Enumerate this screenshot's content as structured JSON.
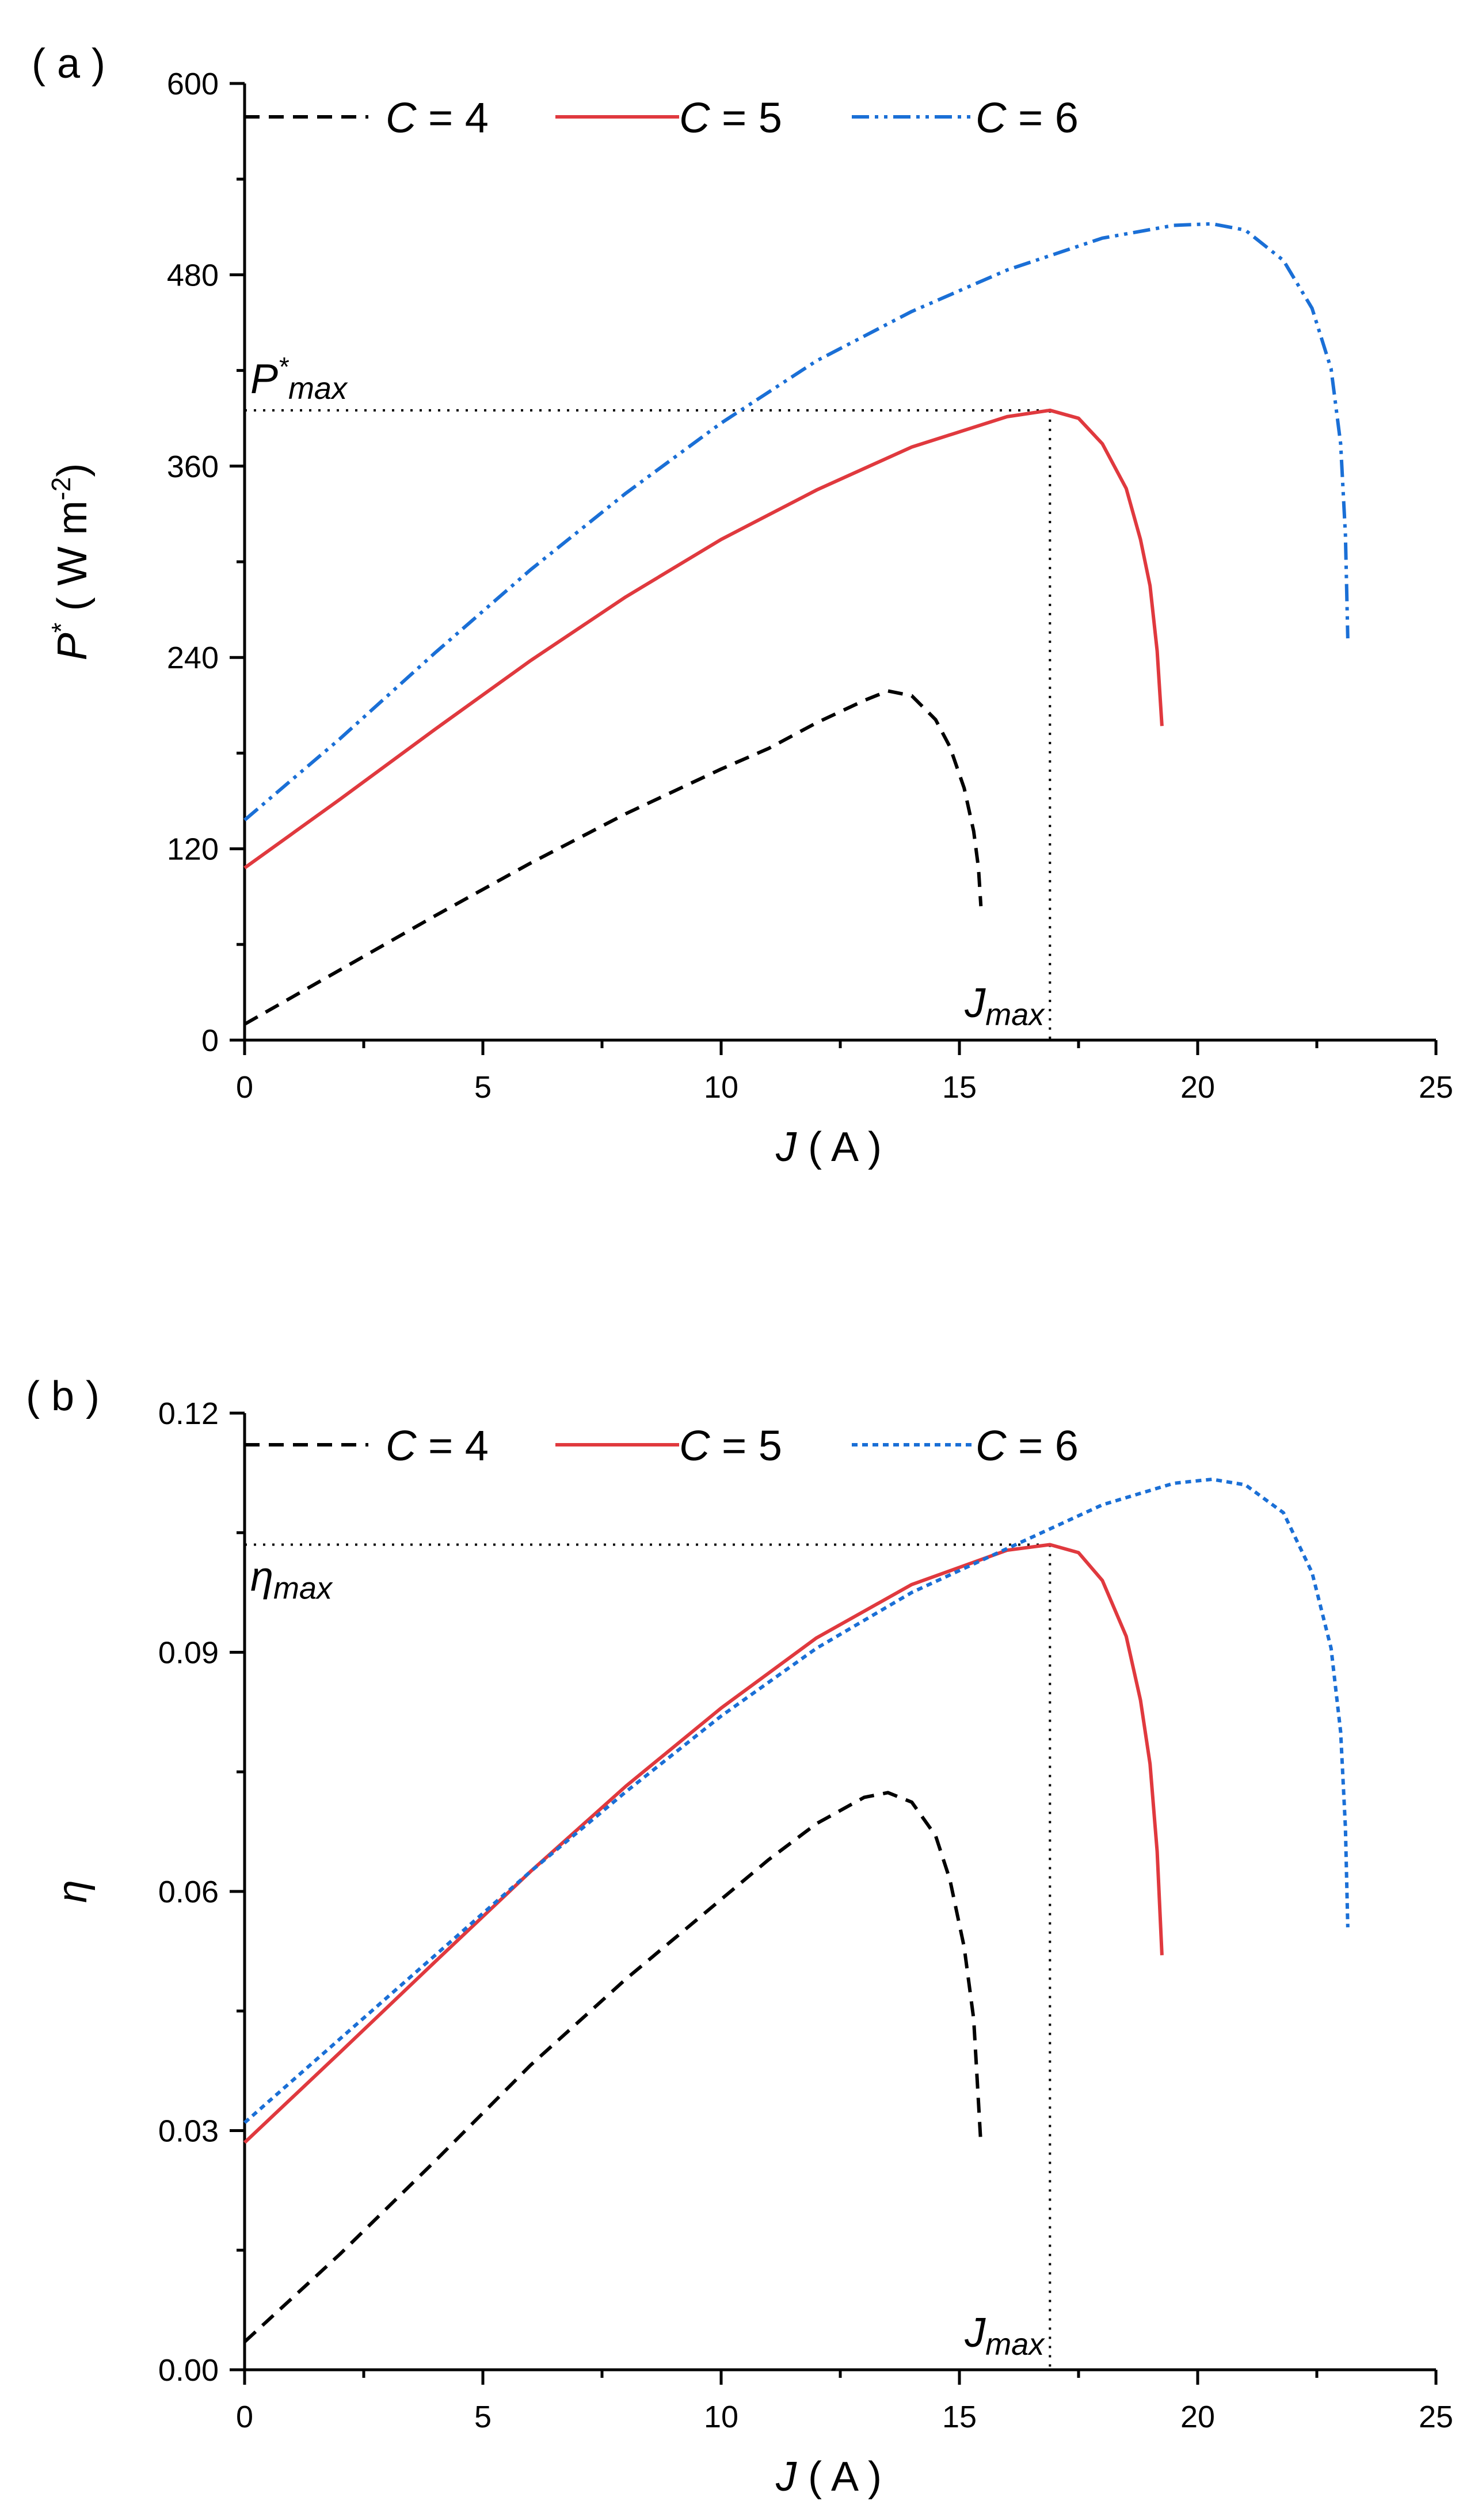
{
  "chart_data": [
    {
      "panel_label": "( a )",
      "type": "line",
      "xlabel_var": "J",
      "xlabel_unit": "( A )",
      "ylabel_var": "P",
      "ylabel_sup": "*",
      "ylabel_unit": "( W m",
      "ylabel_unit_sup": "-2",
      "ylabel_unit_close": ")",
      "xlim": [
        0,
        25
      ],
      "ylim": [
        0,
        600
      ],
      "xticks": [
        0,
        5,
        10,
        15,
        20,
        25
      ],
      "xtick_labels": [
        "0",
        "5",
        "10",
        "15",
        "20",
        "25"
      ],
      "yticks": [
        0,
        120,
        240,
        360,
        480,
        600
      ],
      "ytick_labels": [
        "0",
        "120",
        "240",
        "360",
        "480",
        "600"
      ],
      "legend": [
        {
          "var": "C",
          "text": " = 4",
          "color": "#000000",
          "dash": "dash"
        },
        {
          "var": "C",
          "text": " = 5",
          "color": "#e0393e",
          "dash": "solid"
        },
        {
          "var": "C",
          "text": " = 6",
          "color": "#1a6fd6",
          "dash": "dashdotdot"
        }
      ],
      "series": [
        {
          "name": "C = 4",
          "color": "#000000",
          "dash": "dash",
          "x": [
            0,
            2,
            4,
            6,
            8,
            10,
            11,
            12,
            13,
            13.5,
            14,
            14.5,
            14.8,
            15.1,
            15.3,
            15.4,
            15.45
          ],
          "y": [
            10,
            44,
            78,
            111,
            142,
            170,
            183,
            199,
            213,
            219,
            216,
            201,
            184,
            158,
            131,
            108,
            84
          ]
        },
        {
          "name": "C = 5",
          "color": "#e0393e",
          "dash": "solid",
          "x": [
            0,
            2,
            4,
            6,
            8,
            10,
            12,
            14,
            16,
            16.9,
            17.5,
            18.0,
            18.5,
            18.8,
            19.0,
            19.15,
            19.25
          ],
          "y": [
            108,
            151,
            195,
            238,
            278,
            314,
            345,
            372,
            391,
            395,
            390,
            374,
            346,
            314,
            285,
            244,
            197
          ]
        },
        {
          "name": "C = 6",
          "color": "#1a6fd6",
          "dash": "dashdotdot",
          "x": [
            0,
            2,
            4,
            6,
            8,
            10,
            12,
            14,
            16,
            18,
            19.5,
            20.3,
            21,
            21.8,
            22.4,
            22.8,
            23.0,
            23.1,
            23.15
          ],
          "y": [
            138,
            189,
            243,
            295,
            343,
            387,
            426,
            457,
            483,
            503,
            511,
            512,
            508,
            489,
            459,
            421,
            374,
            317,
            252
          ]
        }
      ],
      "guides": {
        "x": 16.9,
        "y": 395
      },
      "annotations": {
        "ymax_var": "P",
        "ymax_sup": "*",
        "ymax_sub": "max",
        "xmax_var": "J",
        "xmax_sub": "max"
      }
    },
    {
      "panel_label": "( b )",
      "type": "line",
      "xlabel_var": "J",
      "xlabel_unit": "( A )",
      "ylabel_var": "η",
      "xlim": [
        0,
        25
      ],
      "ylim": [
        0,
        0.12
      ],
      "xticks": [
        0,
        5,
        10,
        15,
        20,
        25
      ],
      "xtick_labels": [
        "0",
        "5",
        "10",
        "15",
        "20",
        "25"
      ],
      "yticks": [
        0,
        0.03,
        0.06,
        0.09,
        0.12
      ],
      "ytick_labels": [
        "0.00",
        "0.03",
        "0.06",
        "0.09",
        "0.12"
      ],
      "legend": [
        {
          "var": "C",
          "text": " = 4",
          "color": "#000000",
          "dash": "dash"
        },
        {
          "var": "C",
          "text": " = 5",
          "color": "#e0393e",
          "dash": "solid"
        },
        {
          "var": "C",
          "text": " = 6",
          "color": "#1a6fd6",
          "dash": "dot"
        }
      ],
      "series": [
        {
          "name": "C = 4",
          "color": "#000000",
          "dash": "dash",
          "x": [
            0,
            2,
            4,
            6,
            8,
            10,
            11,
            12,
            13,
            13.5,
            14,
            14.5,
            14.8,
            15.1,
            15.3,
            15.45
          ],
          "y": [
            0.0035,
            0.0145,
            0.0262,
            0.0382,
            0.049,
            0.059,
            0.064,
            0.0685,
            0.0718,
            0.0724,
            0.0712,
            0.067,
            0.0615,
            0.053,
            0.044,
            0.0283
          ]
        },
        {
          "name": "C = 5",
          "color": "#e0393e",
          "dash": "solid",
          "x": [
            0,
            2,
            4,
            6,
            8,
            10,
            12,
            14,
            16,
            16.9,
            17.5,
            18.0,
            18.5,
            18.8,
            19.0,
            19.15,
            19.25
          ],
          "y": [
            0.0285,
            0.0398,
            0.0512,
            0.0625,
            0.0732,
            0.083,
            0.0918,
            0.0985,
            0.1028,
            0.1035,
            0.1025,
            0.099,
            0.092,
            0.084,
            0.076,
            0.065,
            0.052
          ]
        },
        {
          "name": "C = 6",
          "color": "#1a6fd6",
          "dash": "dot",
          "x": [
            0,
            2,
            4,
            6,
            8,
            10,
            12,
            14,
            16,
            18,
            19.5,
            20.3,
            21,
            21.8,
            22.4,
            22.8,
            23.0,
            23.1,
            23.15
          ],
          "y": [
            0.031,
            0.0415,
            0.052,
            0.0625,
            0.0725,
            0.082,
            0.0905,
            0.0975,
            0.103,
            0.1085,
            0.1112,
            0.1117,
            0.111,
            0.1075,
            0.1,
            0.0905,
            0.08,
            0.068,
            0.0555
          ]
        }
      ],
      "guides": {
        "x": 16.9,
        "y": 0.1035
      },
      "annotations": {
        "ymax_var": "η",
        "ymax_sub": "max",
        "xmax_var": "J",
        "xmax_sub": "max"
      }
    }
  ]
}
